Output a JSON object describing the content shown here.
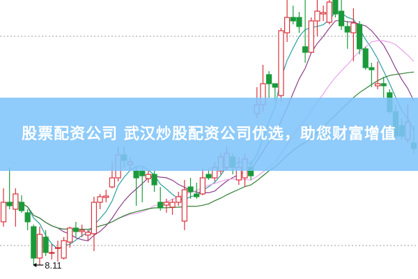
{
  "banner": {
    "text": "股票配资公司 武汉炒股配资公司优选，助您财富增值"
  },
  "chart_data": {
    "type": "candlestick",
    "ylim": [
      7.71,
      15.71
    ],
    "grid": "dotted horizontal",
    "colors": {
      "up": "#d9303a",
      "down": "#1a9a3a",
      "ma5": "#2a9ea0",
      "ma10": "#8a3d8a",
      "ma20": "#e8a2e8",
      "ma30": "#2e7d32",
      "grid": "#999999"
    },
    "annotation": {
      "label": "8.11",
      "candle_index": 5
    },
    "candles": [
      [
        9.35,
        10.31,
        9.21,
        9.91
      ],
      [
        9.91,
        10.91,
        9.71,
        9.81
      ],
      [
        9.71,
        10.31,
        9.21,
        10.15
      ],
      [
        9.91,
        10.11,
        9.61,
        9.67
      ],
      [
        9.61,
        9.71,
        9.11,
        9.35
      ],
      [
        9.21,
        9.27,
        8.11,
        8.31
      ],
      [
        8.31,
        9.21,
        8.11,
        8.99
      ],
      [
        8.91,
        9.11,
        8.37,
        8.47
      ],
      [
        8.45,
        8.71,
        8.27,
        8.47
      ],
      [
        8.59,
        8.81,
        8.21,
        8.61
      ],
      [
        8.31,
        8.91,
        8.27,
        8.81
      ],
      [
        8.77,
        9.21,
        8.61,
        9.17
      ],
      [
        9.17,
        9.35,
        8.91,
        9.07
      ],
      [
        9.07,
        9.27,
        8.91,
        9.11
      ],
      [
        8.97,
        9.11,
        8.81,
        9.05
      ],
      [
        9.01,
        10.07,
        8.51,
        9.91
      ],
      [
        9.91,
        10.15,
        9.71,
        10.07
      ],
      [
        10.05,
        10.27,
        9.91,
        10.09
      ],
      [
        10.35,
        11.07,
        10.31,
        10.61
      ],
      [
        10.61,
        11.51,
        10.51,
        11.27
      ],
      [
        11.27,
        11.51,
        10.91,
        11.11
      ],
      [
        10.99,
        11.21,
        10.81,
        11.07
      ],
      [
        10.81,
        10.91,
        9.81,
        10.61
      ],
      [
        10.81,
        10.91,
        9.91,
        10.67
      ],
      [
        10.59,
        10.81,
        10.47,
        10.71
      ],
      [
        10.71,
        10.81,
        10.21,
        10.41
      ],
      [
        9.91,
        10.35,
        9.67,
        9.75
      ],
      [
        9.83,
        10.01,
        9.61,
        9.91
      ],
      [
        9.77,
        10.01,
        9.55,
        9.91
      ],
      [
        9.91,
        10.21,
        9.81,
        10.07
      ],
      [
        9.37,
        10.55,
        9.11,
        10.27
      ],
      [
        10.35,
        10.61,
        10.01,
        10.21
      ],
      [
        10.15,
        10.47,
        10.01,
        10.07
      ],
      [
        10.15,
        10.87,
        10.11,
        10.61
      ],
      [
        10.71,
        10.87,
        10.55,
        10.61
      ],
      [
        10.61,
        11.07,
        10.51,
        10.91
      ],
      [
        10.81,
        11.31,
        10.71,
        11.21
      ],
      [
        10.91,
        11.51,
        10.81,
        11.31
      ],
      [
        11.21,
        11.31,
        10.71,
        10.91
      ],
      [
        10.55,
        11.21,
        10.41,
        10.91
      ],
      [
        10.61,
        11.31,
        10.35,
        11.15
      ],
      [
        10.91,
        11.11,
        10.55,
        10.67
      ],
      [
        12.45,
        13.21,
        12.31,
        12.71
      ],
      [
        12.71,
        13.85,
        12.51,
        13.31
      ],
      [
        13.57,
        13.67,
        12.91,
        13.31
      ],
      [
        13.31,
        13.31,
        12.81,
        13.21
      ],
      [
        12.97,
        14.91,
        12.81,
        14.83
      ],
      [
        14.77,
        15.71,
        14.51,
        15.21
      ],
      [
        15.21,
        15.55,
        15.01,
        15.11
      ],
      [
        15.21,
        15.37,
        14.77,
        14.95
      ],
      [
        14.37,
        15.71,
        13.91,
        14.21
      ],
      [
        14.21,
        15.21,
        14.21,
        15.11
      ],
      [
        15.11,
        15.71,
        14.67,
        15.39
      ],
      [
        15.31,
        15.55,
        15.11,
        15.35
      ],
      [
        15.07,
        15.71,
        15.01,
        15.65
      ],
      [
        15.71,
        15.71,
        15.21,
        15.31
      ],
      [
        15.39,
        15.71,
        14.85,
        14.97
      ],
      [
        14.95,
        15.11,
        14.31,
        14.79
      ],
      [
        14.77,
        15.47,
        13.95,
        15.05
      ],
      [
        15.01,
        15.11,
        14.15,
        14.31
      ],
      [
        14.31,
        14.37,
        13.71,
        13.77
      ],
      [
        13.77,
        13.91,
        13.21,
        13.71
      ],
      [
        13.25,
        13.95,
        13.15,
        13.31
      ],
      [
        13.31,
        13.51,
        12.91,
        13.25
      ],
      [
        13.05,
        13.15,
        12.45,
        12.51
      ],
      [
        12.51,
        12.71,
        11.71,
        11.81
      ],
      [
        12.11,
        12.31,
        11.71,
        11.81
      ],
      [
        11.71,
        12.71,
        11.61,
        12.21
      ],
      [
        11.61,
        12.11,
        11.31,
        11.45
      ]
    ],
    "moving_averages": [
      5,
      10,
      20,
      30
    ]
  }
}
